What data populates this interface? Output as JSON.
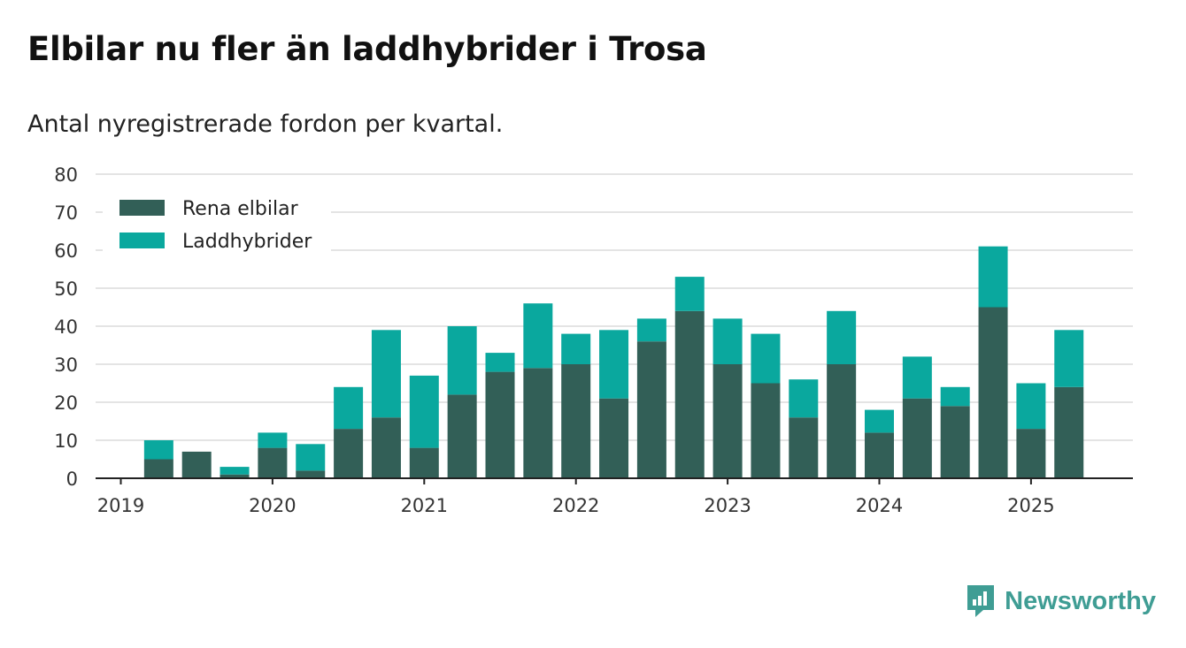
{
  "title": "Elbilar nu fler än laddhybrider i Trosa",
  "subtitle": "Antal nyregistrerade fordon per kvartal.",
  "brand": {
    "name": "Newsworthy",
    "icon": "newsworthy-logo-icon"
  },
  "colors": {
    "elbilar": "#325f57",
    "laddhybrider": "#0aa89e",
    "grid": "#dcdcdc",
    "axis": "#222222"
  },
  "chart_data": {
    "type": "bar",
    "stacked": true,
    "categories": [
      "2019 Q1",
      "2019 Q2",
      "2019 Q3",
      "2019 Q4",
      "2020 Q1",
      "2020 Q2",
      "2020 Q3",
      "2020 Q4",
      "2021 Q1",
      "2021 Q2",
      "2021 Q3",
      "2021 Q4",
      "2022 Q1",
      "2022 Q2",
      "2022 Q3",
      "2022 Q4",
      "2023 Q1",
      "2023 Q2",
      "2023 Q3",
      "2023 Q4",
      "2024 Q1",
      "2024 Q2",
      "2024 Q3",
      "2024 Q4",
      "2025 Q1",
      "2025 Q2"
    ],
    "series": [
      {
        "name": "Rena elbilar",
        "values": [
          0,
          5,
          7,
          1,
          8,
          2,
          13,
          16,
          8,
          22,
          28,
          29,
          30,
          21,
          36,
          44,
          30,
          25,
          16,
          30,
          12,
          21,
          19,
          45,
          13,
          24
        ]
      },
      {
        "name": "Laddhybrider",
        "values": [
          0,
          5,
          0,
          2,
          4,
          7,
          11,
          23,
          19,
          18,
          5,
          17,
          8,
          18,
          6,
          9,
          12,
          13,
          10,
          14,
          6,
          11,
          5,
          16,
          12,
          15
        ]
      }
    ],
    "x_tick_labels": [
      "2019",
      "2020",
      "2021",
      "2022",
      "2023",
      "2024",
      "2025"
    ],
    "y_ticks": [
      0,
      10,
      20,
      30,
      40,
      50,
      60,
      70,
      80
    ],
    "ylim": [
      0,
      80
    ],
    "grid": true,
    "legend_position": "top-left"
  }
}
